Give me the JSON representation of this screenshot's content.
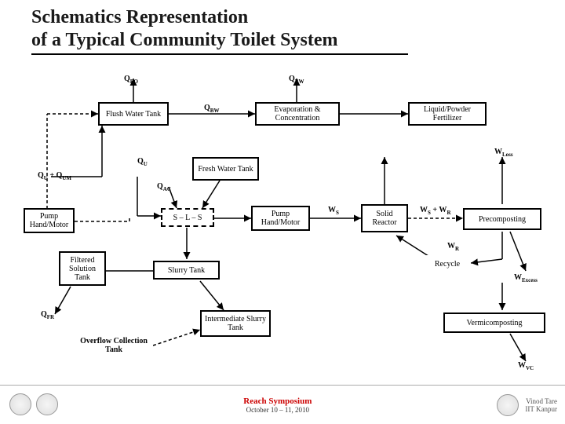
{
  "title_line1": "Schematics Representation",
  "title_line2": "of a Typical Community Toilet System",
  "nodes": {
    "flush_tank": "Flush Water\nTank",
    "evap": "Evaporation &\nConcentration",
    "fertilizer": "Liquid/Powder\nFertilizer",
    "fresh_tank": "Fresh Water\nTank",
    "pump1": "Pump\nHand/Motor",
    "sls": "S – L – S",
    "pump2": "Pump\nHand/Motor",
    "solid_reactor": "Solid\nReactor",
    "precompost": "Precomposting",
    "filtered": "Filtered\nSolution\nTank",
    "slurry": "Slurry Tank",
    "recycle": "Recycle",
    "inter_slurry": "Intermediate\nSlurry Tank",
    "vermi": "Vermicomposting",
    "overflow": "Overflow Collection\nTank"
  },
  "labels": {
    "qbo": "Q<sub>BO</sub>",
    "qbw_top": "Q<sub>BW</sub>",
    "qbw_mid": "Q<sub>BW</sub>",
    "qu": "Q<sub>U</sub>",
    "qu_qum": "Q<sub>U</sub> + Q<sub>UM</sub>",
    "qac": "Q<sub>AC</sub>",
    "qfr": "Q<sub>FR</sub>",
    "ws": "W<sub>S</sub>",
    "wloss": "W<sub>Loss</sub>",
    "ws_wr": "W<sub>S</sub> + W<sub>R</sub>",
    "wr": "W<sub>R</sub>",
    "wexcess": "W<sub>Excess</sub>",
    "wvc": "W<sub>VC</sub>"
  },
  "footer": {
    "event": "Reach Symposium",
    "date": "October 10 – 11, 2010",
    "author": "Vinod Tare",
    "org": "IIT Kanpur"
  },
  "colors": {
    "line": "#000000",
    "dash": "#000000",
    "accent": "#cc0000"
  }
}
